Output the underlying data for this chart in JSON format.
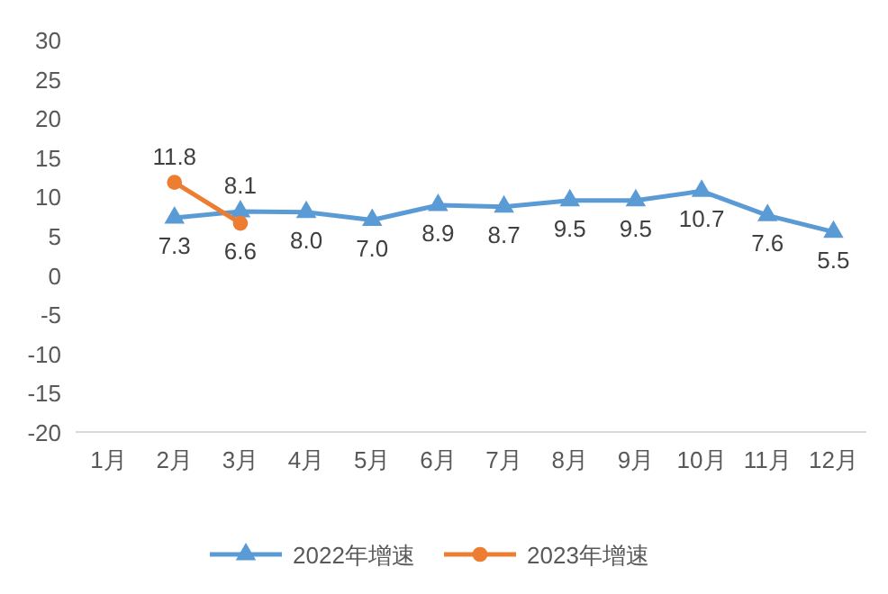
{
  "chart_data": {
    "type": "line",
    "categories": [
      "1月",
      "2月",
      "3月",
      "4月",
      "5月",
      "6月",
      "7月",
      "8月",
      "9月",
      "10月",
      "11月",
      "12月"
    ],
    "series": [
      {
        "name": "2022年增速",
        "color": "#5b9bd5",
        "marker": "triangle",
        "values": [
          null,
          7.3,
          8.1,
          8.0,
          7.0,
          8.9,
          8.7,
          9.5,
          9.5,
          10.7,
          7.6,
          5.5
        ],
        "value_labels": [
          null,
          "7.3",
          "8.1",
          "8.0",
          "7.0",
          "8.9",
          "8.7",
          "9.5",
          "9.5",
          "10.7",
          "7.6",
          "5.5"
        ]
      },
      {
        "name": "2023年增速",
        "color": "#ed7d31",
        "marker": "circle",
        "values": [
          null,
          11.8,
          6.6,
          null,
          null,
          null,
          null,
          null,
          null,
          null,
          null,
          null
        ]
      }
    ],
    "ylim": [
      -20,
      30
    ],
    "yticks": [
      -20,
      -15,
      -10,
      -5,
      0,
      5,
      10,
      15,
      20,
      25,
      30
    ],
    "data_labels": true,
    "legend": "bottom",
    "grid": false
  }
}
